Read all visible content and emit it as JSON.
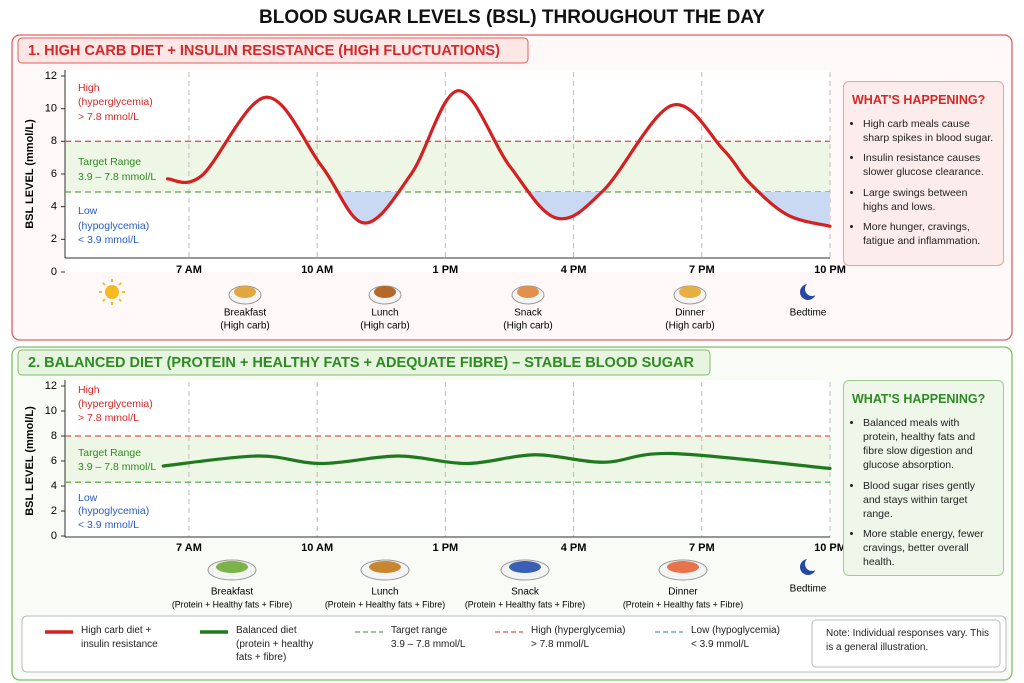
{
  "title": "BLOOD SUGAR LEVELS (BSL) THROUGHOUT THE DAY",
  "chart_data": [
    {
      "type": "line",
      "title": "1. HIGH CARB DIET + INSULIN RESISTANCE (HIGH FLUCTUATIONS)",
      "theme_color": "#d62728",
      "y_label": "BSL LEVEL (mmol/L)",
      "xlim": [
        4.1,
        22
      ],
      "xticks": [
        {
          "value": 7,
          "label": "7 AM"
        },
        {
          "value": 10,
          "label": "10 AM"
        },
        {
          "value": 13,
          "label": "1 PM"
        },
        {
          "value": 16,
          "label": "4 PM"
        },
        {
          "value": 19,
          "label": "7 PM"
        },
        {
          "value": 22,
          "label": "10 PM"
        }
      ],
      "ylim": [
        0,
        12
      ],
      "yticks": [
        0,
        2,
        4,
        6,
        8,
        10,
        12
      ],
      "series": [
        {
          "name": "High carb diet + insulin resistance",
          "color": "#d42020",
          "x": [
            6.5,
            7.3,
            8.8,
            10.1,
            11.1,
            12.2,
            13.3,
            14.5,
            15.6,
            16.7,
            18.3,
            19.5,
            20.1,
            21,
            22
          ],
          "values": [
            5.7,
            5.9,
            10.7,
            6.5,
            3.0,
            6.0,
            11.1,
            6.5,
            3.3,
            5.0,
            10.2,
            7.5,
            5.5,
            3.5,
            2.8
          ]
        }
      ],
      "reference_lines": [
        {
          "value": 8,
          "color": "#e05555"
        },
        {
          "value": 4.9,
          "color": "#5aa845"
        }
      ],
      "zone_labels": [
        {
          "lines": [
            "High",
            "(hyperglycemia)",
            "> 7.8 mmol/L"
          ],
          "color": "#d62728"
        },
        {
          "lines": [
            "Target Range",
            "3.9 – 7.8 mmol/L"
          ],
          "color": "#2e8b22"
        },
        {
          "lines": [
            "Low",
            "(hypoglycemia)",
            "< 3.9 mmol/L"
          ],
          "color": "#2a5cc4"
        }
      ],
      "meals": [
        {
          "name": "Breakfast",
          "note": "(High carb)"
        },
        {
          "name": "Lunch",
          "note": "(High carb)"
        },
        {
          "name": "Snack",
          "note": "(High carb)"
        },
        {
          "name": "Dinner",
          "note": "(High carb)"
        },
        {
          "name": "Bedtime"
        }
      ],
      "side_panel": {
        "title": "WHAT'S HAPPENING?",
        "bullets": [
          "High carb meals cause sharp spikes in blood sugar.",
          "Insulin resistance causes slower glucose clearance.",
          "Large swings between highs and lows.",
          "More hunger, cravings, fatigue and inflammation."
        ]
      }
    },
    {
      "type": "line",
      "title": "2. BALANCED DIET (PROTEIN + HEALTHY FATS + ADEQUATE FIBRE) – STABLE BLOOD SUGAR",
      "theme_color": "#2e8b22",
      "y_label": "BSL LEVEL (mmol/L)",
      "xlim": [
        4.1,
        22
      ],
      "xticks": [
        {
          "value": 7,
          "label": "7 AM"
        },
        {
          "value": 10,
          "label": "10 AM"
        },
        {
          "value": 13,
          "label": "1 PM"
        },
        {
          "value": 16,
          "label": "4 PM"
        },
        {
          "value": 19,
          "label": "7 PM"
        },
        {
          "value": 22,
          "label": "10 PM"
        }
      ],
      "ylim": [
        0,
        12
      ],
      "yticks": [
        0,
        2,
        4,
        6,
        8,
        10,
        12
      ],
      "series": [
        {
          "name": "Balanced diet (protein + healthy fats + fibre)",
          "color": "#1f7a1f",
          "x": [
            6.4,
            8.6,
            10.1,
            11.9,
            13.5,
            15.1,
            16.7,
            18.3,
            22
          ],
          "values": [
            5.6,
            6.4,
            5.8,
            6.4,
            5.8,
            6.5,
            5.9,
            6.6,
            5.4
          ]
        }
      ],
      "reference_lines": [
        {
          "value": 8,
          "color": "#e05555"
        },
        {
          "value": 4.3,
          "color": "#5aa845"
        }
      ],
      "zone_labels": [
        {
          "lines": [
            "High",
            "(hyperglycemia)",
            "> 7.8 mmol/L"
          ],
          "color": "#d62728"
        },
        {
          "lines": [
            "Target Range",
            "3.9 – 7.8 mmol/L"
          ],
          "color": "#2e8b22"
        },
        {
          "lines": [
            "Low",
            "(hypoglycemia)",
            "< 3.9 mmol/L"
          ],
          "color": "#2a5cc4"
        }
      ],
      "meals": [
        {
          "name": "Breakfast",
          "note": "(Protein + Healthy fats + Fibre)"
        },
        {
          "name": "Lunch",
          "note": "(Protein + Healthy fats + Fibre)"
        },
        {
          "name": "Snack",
          "note": "(Protein + Healthy fats + Fibre)"
        },
        {
          "name": "Dinner",
          "note": "(Protein + Healthy fats + Fibre)"
        },
        {
          "name": "Bedtime"
        }
      ],
      "side_panel": {
        "title": "WHAT'S HAPPENING?",
        "bullets": [
          "Balanced meals with protein, healthy fats and fibre slow digestion and glucose absorption.",
          "Blood sugar rises gently and stays within target range.",
          "More stable energy, fewer cravings, better overall health."
        ]
      }
    }
  ],
  "legend": [
    {
      "label": "Target range",
      "detail": "3.9 – 7.8 mmol/L",
      "color": "#5aa845"
    },
    {
      "label": "High (hyperglycemia)",
      "detail": "> 7.8 mmol/L",
      "color": "#e05555"
    },
    {
      "label": "Low (hypoglycemia)",
      "detail": "< 3.9 mmol/L",
      "color": "#5b8fd9"
    }
  ],
  "note": "Note: Individual responses vary. This is a general illustration."
}
